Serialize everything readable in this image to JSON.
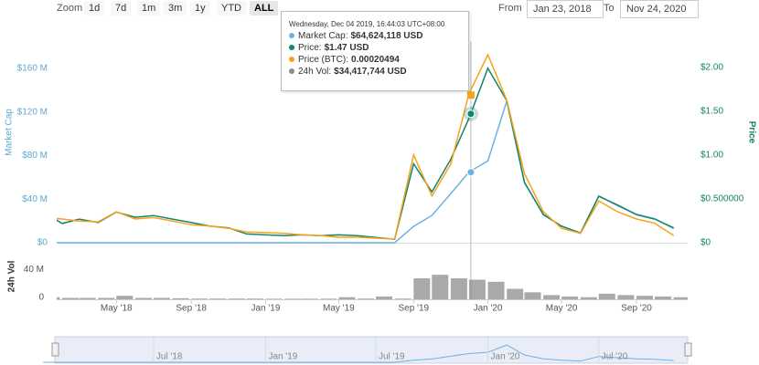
{
  "toolbar": {
    "zoom_label": "Zoom",
    "buttons": [
      "1d",
      "7d",
      "1m",
      "3m",
      "1y",
      "YTD",
      "ALL"
    ],
    "active": 6,
    "from_label": "From",
    "from": "Jan 23, 2018",
    "to_label": "To",
    "to": "Nov 24, 2020"
  },
  "chart_data": {
    "type": "line",
    "x": [
      "2018-01",
      "2018-02",
      "2018-03",
      "2018-04",
      "2018-05",
      "2018-06",
      "2018-07",
      "2018-08",
      "2018-09",
      "2018-10",
      "2018-11",
      "2018-12",
      "2019-01",
      "2019-02",
      "2019-03",
      "2019-04",
      "2019-05",
      "2019-06",
      "2019-07",
      "2019-08",
      "2019-09",
      "2019-10",
      "2019-11",
      "2019-12",
      "2020-01",
      "2020-02",
      "2020-03",
      "2020-04",
      "2020-05",
      "2020-06",
      "2020-07",
      "2020-08",
      "2020-09",
      "2020-10",
      "2020-11"
    ],
    "xlim": [
      "2018-01-23",
      "2020-11-24"
    ],
    "xticks": [
      {
        "value": "2018-05",
        "label": "May '18"
      },
      {
        "value": "2018-09",
        "label": "Sep '18"
      },
      {
        "value": "2019-01",
        "label": "Jan '19"
      },
      {
        "value": "2019-05",
        "label": "May '19"
      },
      {
        "value": "2019-09",
        "label": "Sep '19"
      },
      {
        "value": "2020-01",
        "label": "Jan '20"
      },
      {
        "value": "2020-05",
        "label": "May '20"
      },
      {
        "value": "2020-09",
        "label": "Sep '20"
      }
    ],
    "ylabel": "Market Cap",
    "ylim": [
      0,
      185000000
    ],
    "yticks": [
      {
        "value": 0,
        "label": "$0"
      },
      {
        "value": 40000000,
        "label": "$40 M"
      },
      {
        "value": 80000000,
        "label": "$80 M"
      },
      {
        "value": 120000000,
        "label": "$120 M"
      },
      {
        "value": 160000000,
        "label": "$160 M"
      }
    ],
    "y2label": "Price",
    "y2lim": [
      0,
      2.3
    ],
    "y2ticks": [
      {
        "value": 0,
        "label": "$0"
      },
      {
        "value": 0.5,
        "label": "$0.500000"
      },
      {
        "value": 1,
        "label": "$1.00"
      },
      {
        "value": 1.5,
        "label": "$1.50"
      },
      {
        "value": 2,
        "label": "$2.00"
      }
    ],
    "y3lim": [
      0,
      0.00028
    ],
    "vol_label": "24h Vol",
    "vol_ylim": [
      0,
      60000000
    ],
    "vol_yticks": [
      0,
      {
        "value": 40000000,
        "label": "40 M"
      }
    ],
    "series": [
      {
        "name": "Market Cap",
        "color": "#6cb2e0",
        "values": [
          0,
          0,
          0,
          0,
          0,
          0,
          0,
          0,
          0,
          0,
          0,
          0,
          0,
          0,
          0,
          0,
          0,
          0,
          0,
          0,
          15000000,
          25000000,
          45000000,
          65000000,
          75000000,
          130000000,
          55000000,
          26000000,
          15000000,
          9000000,
          43000000,
          34000000,
          26000000,
          22000000,
          13000000
        ]
      },
      {
        "name": "Price",
        "color": "#13856a",
        "axis": "y2",
        "values": [
          0.35,
          0.22,
          0.27,
          0.23,
          0.35,
          0.29,
          0.31,
          0.27,
          0.23,
          0.19,
          0.17,
          0.1,
          0.09,
          0.08,
          0.09,
          0.08,
          0.09,
          0.08,
          0.06,
          0.04,
          0.9,
          0.58,
          0.95,
          1.42,
          1.99,
          1.62,
          0.69,
          0.32,
          0.19,
          0.11,
          0.53,
          0.43,
          0.32,
          0.27,
          0.17
        ]
      },
      {
        "name": "Price (BTC)",
        "color": "#f7a21b",
        "axis": "y3",
        "values": [
          3.5e-05,
          3.3e-05,
          3e-05,
          2.9e-05,
          4.3e-05,
          3.3e-05,
          3.5e-05,
          3e-05,
          2.5e-05,
          2.3e-05,
          2e-05,
          1.5e-05,
          1.4e-05,
          1.3e-05,
          1.1e-05,
          1e-05,
          7.6e-06,
          7.6e-06,
          6.3e-06,
          5.1e-06,
          0.000122,
          6.5e-05,
          0.000109,
          0.000207,
          0.000261,
          0.000198,
          9.6e-05,
          4.3e-05,
          2e-05,
          1.3e-05,
          5.8e-05,
          4.3e-05,
          3.3e-05,
          2.7e-05,
          1e-05
        ]
      },
      {
        "name": "24h Vol",
        "color": "#8c8c8c",
        "axis": "vol",
        "values": [
          3000000,
          2000000,
          2000000,
          2000000,
          5000000,
          2000000,
          2000000,
          1500000,
          1000000,
          1000000,
          1000000,
          1000000,
          800000,
          800000,
          800000,
          900000,
          3000000,
          1000000,
          4000000,
          1000000,
          30000000,
          35000000,
          30000000,
          28000000,
          25000000,
          15000000,
          10000000,
          6000000,
          4000000,
          3000000,
          8000000,
          6000000,
          5000000,
          4000000,
          3000000
        ]
      }
    ],
    "navigator_xticks": [
      {
        "value": "2018-07",
        "label": "Jul '18"
      },
      {
        "value": "2019-01",
        "label": "Jan '19"
      },
      {
        "value": "2019-07",
        "label": "Jul '19"
      },
      {
        "value": "2020-01",
        "label": "Jan '20"
      },
      {
        "value": "2020-07",
        "label": "Jul '20"
      }
    ],
    "tooltip": {
      "title": "Wednesday, Dec 04 2019, 16:44:03 UTC+08:00",
      "x": "2019-12-04",
      "separator": ":",
      "values": [
        64624118,
        1.47,
        0.00020494,
        34417744
      ],
      "value_labels": [
        "$64,624,118 USD",
        "$1.47 USD",
        "0.00020494",
        "$34,417,744 USD"
      ]
    }
  }
}
